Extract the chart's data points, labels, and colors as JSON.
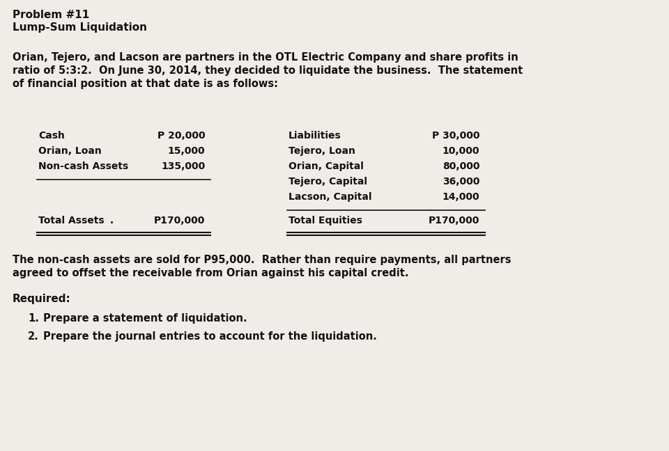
{
  "background_color": "#f0ede8",
  "title_line1": "Problem #11",
  "title_line2": "Lump-Sum Liquidation",
  "paragraph": "Orian, Tejero, and Lacson are partners in the OTL Electric Company and share profits in\nratio of 5:3:2.  On June 30, 2014, they decided to liquidate the business.  The statement\nof financial position at that date is as follows:",
  "assets": [
    {
      "label": "Cash",
      "value": "P 20,000"
    },
    {
      "label": "Orian, Loan",
      "value": "15,000"
    },
    {
      "label": "Non-cash Assets",
      "value": "135,000"
    }
  ],
  "liabilities": [
    {
      "label": "Liabilities",
      "value": "P 30,000"
    },
    {
      "label": "Tejero, Loan",
      "value": "10,000"
    },
    {
      "label": "Orian, Capital",
      "value": "80,000"
    },
    {
      "label": "Tejero, Capital",
      "value": "36,000"
    },
    {
      "label": "Lacson, Capital",
      "value": "14,000"
    }
  ],
  "total_assets_label": "Total Assets",
  "total_assets_dot": " .",
  "total_assets_value": "P170,000",
  "total_equities_label": "Total Equities",
  "total_equities_value": "P170,000",
  "paragraph2": "The non-cash assets are sold for P95,000.  Rather than require payments, all partners\nagreed to offset the receivable from Orian against his capital credit.",
  "required_label": "Required:",
  "req1": "Prepare a statement of liquidation.",
  "req2": "Prepare the journal entries to account for the liquidation.",
  "text_color": "#111111",
  "font_size_title": 11,
  "font_size_body": 10.5,
  "font_size_table": 10
}
